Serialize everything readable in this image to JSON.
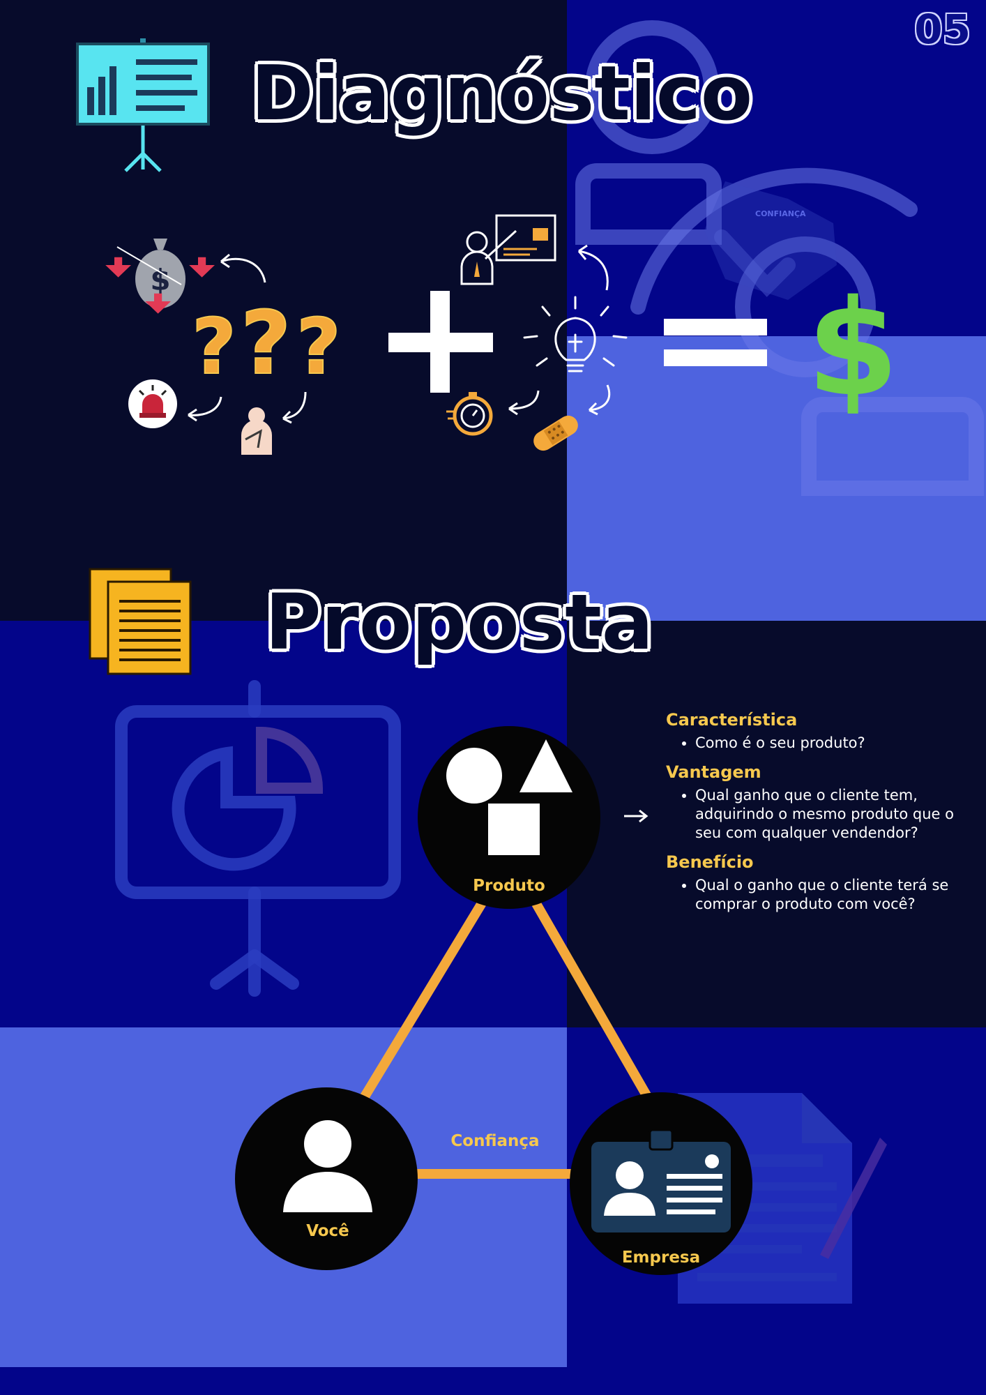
{
  "page": {
    "number": "05",
    "background_colors": {
      "dark": "#070b2b",
      "navy": "#03058a",
      "light": "#4e63df"
    }
  },
  "diagnostico": {
    "title": "Diagnóstico",
    "icons": [
      "presentation-board-icon",
      "money-bag-down-icon",
      "question-marks-icon",
      "alarm-siren-icon",
      "injured-person-icon",
      "plus-icon",
      "presenter-icon",
      "lightbulb-icon",
      "stopwatch-icon",
      "bandage-icon",
      "equals-icon",
      "dollar-sign-icon"
    ],
    "background_watermark_label": "CONFIANÇA"
  },
  "proposta": {
    "title": "Proposta",
    "icons": [
      "documents-icon",
      "pie-chart-board-icon",
      "shapes-icon",
      "user-icon",
      "id-badge-icon",
      "contract-pen-icon",
      "arrow-right-icon"
    ],
    "nodes": {
      "produto": "Produto",
      "voce": "Você",
      "empresa": "Empresa"
    },
    "edge_label": "Confiança",
    "features": [
      {
        "heading": "Característica",
        "items": [
          "Como é o seu produto?"
        ]
      },
      {
        "heading": "Vantagem",
        "items": [
          "Qual ganho que o cliente tem, adquirindo o mesmo produto que o seu com qualquer vendendor?"
        ]
      },
      {
        "heading": "Benefício",
        "items": [
          "Qual o ganho que o cliente terá se comprar o produto com você?"
        ]
      }
    ],
    "colors": {
      "accent": "#f6c84e",
      "line": "#f4a93b",
      "node": "#050505"
    }
  }
}
